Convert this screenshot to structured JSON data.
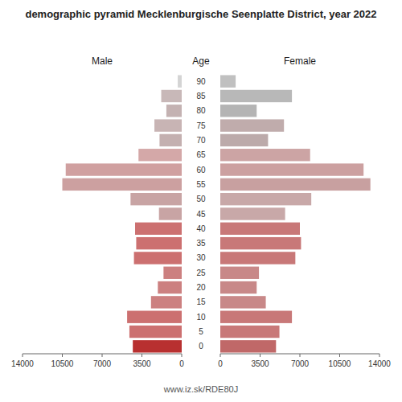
{
  "chart_data": {
    "type": "pyramid",
    "orientation": "horizontal",
    "title": "demographic pyramid Mecklenburgische Seenplatte District, year 2022",
    "ylabel": "Age",
    "categories": [
      "90",
      "85",
      "80",
      "75",
      "70",
      "65",
      "60",
      "55",
      "50",
      "45",
      "40",
      "35",
      "30",
      "25",
      "20",
      "15",
      "10",
      "5",
      "0"
    ],
    "series": [
      {
        "name": "Male",
        "values": [
          350,
          1800,
          1350,
          2400,
          1950,
          3800,
          10200,
          10500,
          4500,
          2000,
          4100,
          4000,
          4200,
          1600,
          2100,
          2700,
          4800,
          4600,
          4300
        ],
        "colors": [
          "#d4d4d4",
          "#c8b8b8",
          "#c4b2b2",
          "#c8b4b4",
          "#c4b0b0",
          "#d4a8a8",
          "#d0a0a0",
          "#cca0a0",
          "#c8a4a4",
          "#c8a4a4",
          "#cc7070",
          "#cc7070",
          "#cc7070",
          "#cc8080",
          "#cc8080",
          "#cc8080",
          "#cc7070",
          "#cc7070",
          "#b83030"
        ]
      },
      {
        "name": "Female",
        "values": [
          1350,
          6300,
          3200,
          5600,
          4200,
          7900,
          12600,
          13200,
          8000,
          5700,
          7000,
          7100,
          6600,
          3400,
          3200,
          4000,
          6300,
          5200,
          4900
        ],
        "colors": [
          "#c0c0c0",
          "#b8b8b8",
          "#b4b4b4",
          "#c0acac",
          "#bcaaaa",
          "#cca4a4",
          "#cca0a0",
          "#c8a0a0",
          "#c8a8a8",
          "#c8a8a8",
          "#c87878",
          "#c87878",
          "#c87878",
          "#c88888",
          "#c88888",
          "#c88888",
          "#c87878",
          "#c87878",
          "#c06868"
        ]
      }
    ],
    "xlim": [
      0,
      14000
    ],
    "xticks": [
      0,
      3500,
      7000,
      10500,
      14000
    ],
    "grid": false,
    "annotations": [
      {
        "text": "www.iz.sk/RDE80J"
      }
    ]
  }
}
